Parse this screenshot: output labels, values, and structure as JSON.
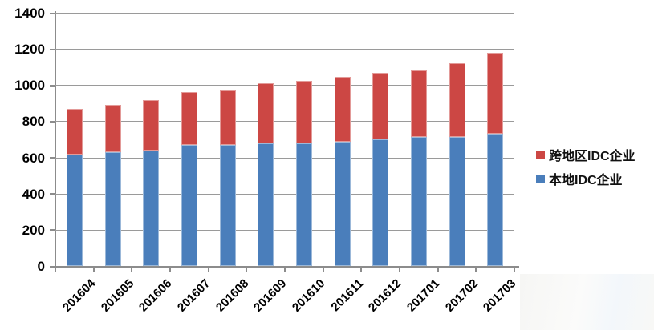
{
  "chart_data": {
    "type": "bar",
    "stacked": true,
    "orientation": "vertical",
    "categories": [
      "201604",
      "201605",
      "201606",
      "201607",
      "201608",
      "201609",
      "201610",
      "201611",
      "201612",
      "201701",
      "201702",
      "201703"
    ],
    "series": [
      {
        "name": "本地IDC企业",
        "color": "#4A7EBB",
        "values": [
          615,
          630,
          640,
          670,
          670,
          680,
          680,
          685,
          700,
          715,
          712,
          730
        ]
      },
      {
        "name": "跨地区IDC企业",
        "color": "#CC4744",
        "values": [
          255,
          260,
          278,
          292,
          305,
          330,
          342,
          360,
          368,
          368,
          408,
          448
        ]
      }
    ],
    "title": "",
    "xlabel": "",
    "ylabel": "",
    "ylim": [
      0,
      1400
    ],
    "yticks": [
      0,
      200,
      400,
      600,
      800,
      1000,
      1200,
      1400
    ],
    "grid": "horizontal-only",
    "gridline_color": "#9a9a9a",
    "axis_color": "#8c8c8c",
    "tick_label_color": "#000000",
    "legend_position": "right",
    "legend": [
      {
        "label": "跨地区IDC企业",
        "color": "#CC4744"
      },
      {
        "label": "本地IDC企业",
        "color": "#4A7EBB"
      }
    ]
  }
}
